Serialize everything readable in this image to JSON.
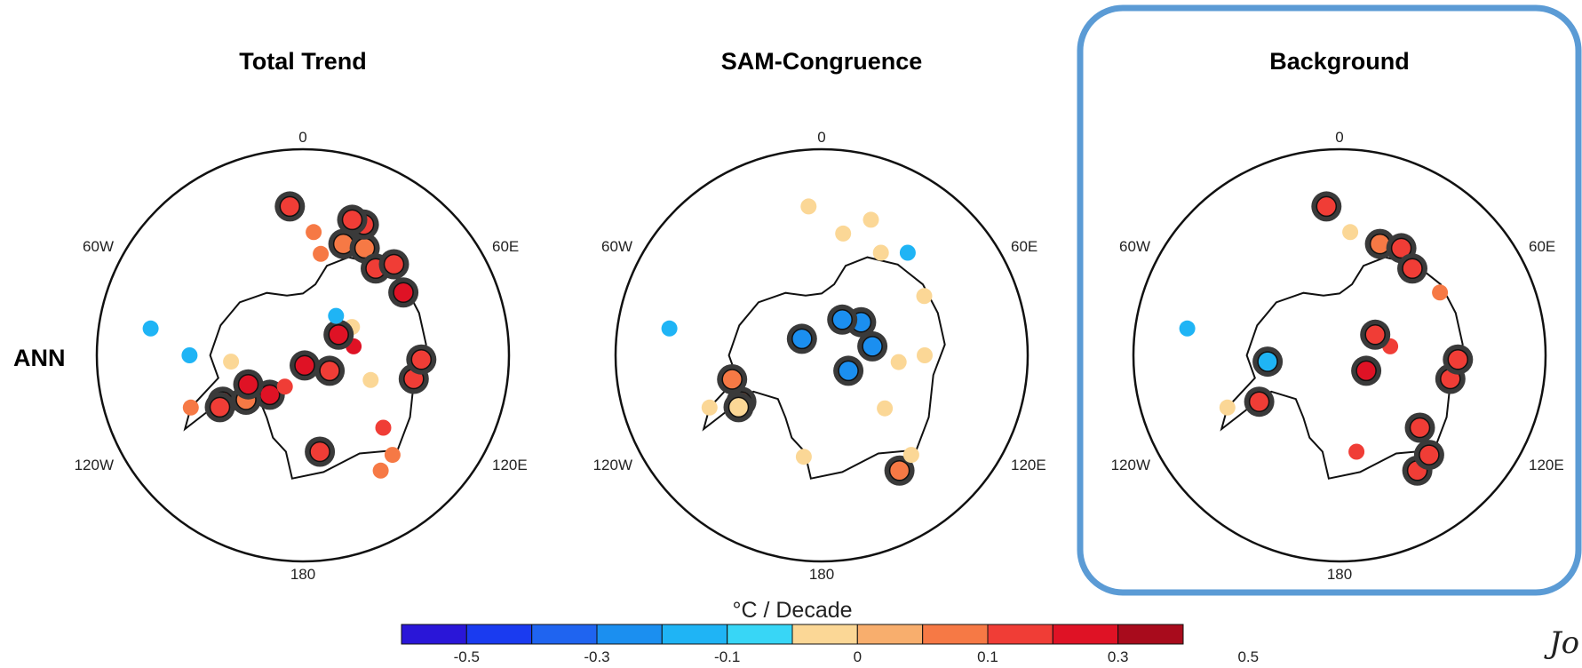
{
  "row_label": "ANN",
  "colors": {
    "highlight": "#5b9bd5",
    "neg5": "#2a16d8",
    "neg4": "#1a3bf0",
    "neg3": "#1f64f0",
    "neg2": "#1b8ff0",
    "neg1": "#1fb4f5",
    "neg0": "#38d6f6",
    "pos0": "#fbd796",
    "pos1": "#f8ae6d",
    "pos2": "#f67945",
    "pos3": "#f03d36",
    "pos4": "#df1225",
    "pos5": "#a80b1c"
  },
  "colorbar": {
    "unit": "°C / Decade",
    "tick_labels": [
      "-0.5",
      "-0.3",
      "-0.1",
      "0",
      "0.1",
      "0.3",
      "0.5"
    ]
  },
  "signature_text": "Jo",
  "chart_data": [
    {
      "type": "scatter",
      "title": "Total Trend",
      "projection": "south polar stereographic",
      "lon_labels": [
        "0",
        "60E",
        "120E",
        "180",
        "120W",
        "60W"
      ],
      "points": [
        {
          "lon": 34,
          "lat": -63,
          "value": 0.15,
          "significant": false
        },
        {
          "lon": 42,
          "lat": -64,
          "value": 0.1,
          "significant": false
        },
        {
          "lon": 10,
          "lat": -71,
          "value": 0.2,
          "significant": true
        },
        {
          "lon": 48,
          "lat": -69,
          "value": 0.2,
          "significant": false
        },
        {
          "lon": 78,
          "lat": -68,
          "value": 0.2,
          "significant": true
        },
        {
          "lon": 88,
          "lat": -67,
          "value": 0.2,
          "significant": true
        },
        {
          "lon": -40,
          "lat": -80,
          "value": 0.3,
          "significant": true
        },
        {
          "lon": -30,
          "lat": -83,
          "value": 0.2,
          "significant": false
        },
        {
          "lon": -60,
          "lat": -72,
          "value": 0.2,
          "significant": true
        },
        {
          "lon": -58,
          "lat": -71,
          "value": 0.2,
          "significant": true
        },
        {
          "lon": -65,
          "lat": -66,
          "value": 0.1,
          "significant": false
        },
        {
          "lon": -52,
          "lat": -76,
          "value": 0.1,
          "significant": true
        },
        {
          "lon": 10,
          "lat": -88,
          "value": 0.3,
          "significant": true
        },
        {
          "lon": -85,
          "lat": -76,
          "value": 0.0,
          "significant": false
        },
        {
          "lon": -62,
          "lat": -78,
          "value": 0.3,
          "significant": true
        },
        {
          "lon": -90,
          "lat": -68,
          "value": -0.1,
          "significant": false
        },
        {
          "lon": -100,
          "lat": -60,
          "value": -0.1,
          "significant": false
        },
        {
          "lon": 60,
          "lat": -84,
          "value": 0.2,
          "significant": true
        },
        {
          "lon": 122,
          "lat": -67,
          "value": 0.3,
          "significant": true
        },
        {
          "lon": 160,
          "lat": -67,
          "value": 0.1,
          "significant": true
        },
        {
          "lon": 170,
          "lat": -70,
          "value": 0.1,
          "significant": false
        },
        {
          "lon": 175,
          "lat": -66,
          "value": 0.1,
          "significant": false
        },
        {
          "lon": -175,
          "lat": -61,
          "value": 0.2,
          "significant": true
        },
        {
          "lon": 150,
          "lat": -66,
          "value": 0.1,
          "significant": true
        },
        {
          "lon": 140,
          "lat": -68,
          "value": 0.2,
          "significant": true
        },
        {
          "lon": 155,
          "lat": -62,
          "value": 0.2,
          "significant": true
        },
        {
          "lon": 160,
          "lat": -62,
          "value": 0.2,
          "significant": true
        },
        {
          "lon": 135,
          "lat": -65,
          "value": 0.2,
          "significant": true
        },
        {
          "lon": 70,
          "lat": -76,
          "value": 0.0,
          "significant": false
        },
        {
          "lon": 100,
          "lat": -80,
          "value": 0.3,
          "significant": false
        },
        {
          "lon": 120,
          "lat": -79,
          "value": 0.0,
          "significant": false
        },
        {
          "lon": 120,
          "lat": -82,
          "value": 0.3,
          "significant": true
        },
        {
          "lon": 140,
          "lat": -80,
          "value": -0.1,
          "significant": false
        }
      ]
    },
    {
      "type": "scatter",
      "title": "SAM-Congruence",
      "projection": "south polar stereographic",
      "lon_labels": [
        "0",
        "60E",
        "120E",
        "180",
        "120W",
        "60W"
      ],
      "points": [
        {
          "lon": 34,
          "lat": -63,
          "value": 0.1,
          "significant": true
        },
        {
          "lon": 42,
          "lat": -64,
          "value": 0.0,
          "significant": false
        },
        {
          "lon": -10,
          "lat": -70,
          "value": 0.0,
          "significant": false
        },
        {
          "lon": 50,
          "lat": -74,
          "value": 0.0,
          "significant": false
        },
        {
          "lon": 85,
          "lat": -75,
          "value": 0.0,
          "significant": false
        },
        {
          "lon": 90,
          "lat": -70,
          "value": 0.0,
          "significant": false
        },
        {
          "lon": -60,
          "lat": -72,
          "value": 0.1,
          "significant": true
        },
        {
          "lon": -58,
          "lat": -71,
          "value": 0.0,
          "significant": true
        },
        {
          "lon": -65,
          "lat": -66,
          "value": 0.0,
          "significant": false
        },
        {
          "lon": -75,
          "lat": -72,
          "value": 0.1,
          "significant": true
        },
        {
          "lon": -100,
          "lat": -60,
          "value": -0.1,
          "significant": false
        },
        {
          "lon": 60,
          "lat": -84,
          "value": -0.2,
          "significant": true
        },
        {
          "lon": 100,
          "lat": -80,
          "value": -0.2,
          "significant": true
        },
        {
          "lon": 130,
          "lat": -80,
          "value": -0.2,
          "significant": true
        },
        {
          "lon": 150,
          "lat": -82,
          "value": -0.2,
          "significant": true
        },
        {
          "lon": -130,
          "lat": -85,
          "value": -0.2,
          "significant": true
        },
        {
          "lon": 120,
          "lat": -67,
          "value": 0.0,
          "significant": false
        },
        {
          "lon": 150,
          "lat": -67,
          "value": 0.0,
          "significant": false
        },
        {
          "lon": 170,
          "lat": -66,
          "value": 0.0,
          "significant": false
        },
        {
          "lon": -175,
          "lat": -61,
          "value": 0.0,
          "significant": false
        },
        {
          "lon": 140,
          "lat": -64,
          "value": -0.1,
          "significant": false
        },
        {
          "lon": 160,
          "lat": -62,
          "value": 0.0,
          "significant": false
        }
      ]
    },
    {
      "type": "scatter",
      "title": "Background",
      "projection": "south polar stereographic",
      "lon_labels": [
        "0",
        "60E",
        "120E",
        "180",
        "120W",
        "60W"
      ],
      "points": [
        {
          "lon": 34,
          "lat": -63,
          "value": 0.2,
          "significant": true
        },
        {
          "lon": 42,
          "lat": -64,
          "value": 0.2,
          "significant": true
        },
        {
          "lon": 10,
          "lat": -71,
          "value": 0.2,
          "significant": false
        },
        {
          "lon": 48,
          "lat": -69,
          "value": 0.2,
          "significant": true
        },
        {
          "lon": 78,
          "lat": -68,
          "value": 0.2,
          "significant": true
        },
        {
          "lon": 88,
          "lat": -67,
          "value": 0.2,
          "significant": true
        },
        {
          "lon": -60,
          "lat": -72,
          "value": 0.2,
          "significant": true
        },
        {
          "lon": -65,
          "lat": -66,
          "value": 0.0,
          "significant": false
        },
        {
          "lon": -85,
          "lat": -76,
          "value": -0.1,
          "significant": true
        },
        {
          "lon": -100,
          "lat": -60,
          "value": -0.1,
          "significant": false
        },
        {
          "lon": 60,
          "lat": -84,
          "value": 0.3,
          "significant": true
        },
        {
          "lon": 100,
          "lat": -80,
          "value": 0.2,
          "significant": false
        },
        {
          "lon": 120,
          "lat": -82,
          "value": 0.2,
          "significant": true
        },
        {
          "lon": 160,
          "lat": -67,
          "value": 0.1,
          "significant": true
        },
        {
          "lon": 175,
          "lat": -66,
          "value": 0.0,
          "significant": false
        },
        {
          "lon": -175,
          "lat": -61,
          "value": 0.2,
          "significant": true
        },
        {
          "lon": 150,
          "lat": -66,
          "value": 0.2,
          "significant": true
        },
        {
          "lon": 140,
          "lat": -68,
          "value": 0.2,
          "significant": true
        },
        {
          "lon": 122,
          "lat": -67,
          "value": 0.1,
          "significant": false
        }
      ]
    }
  ]
}
